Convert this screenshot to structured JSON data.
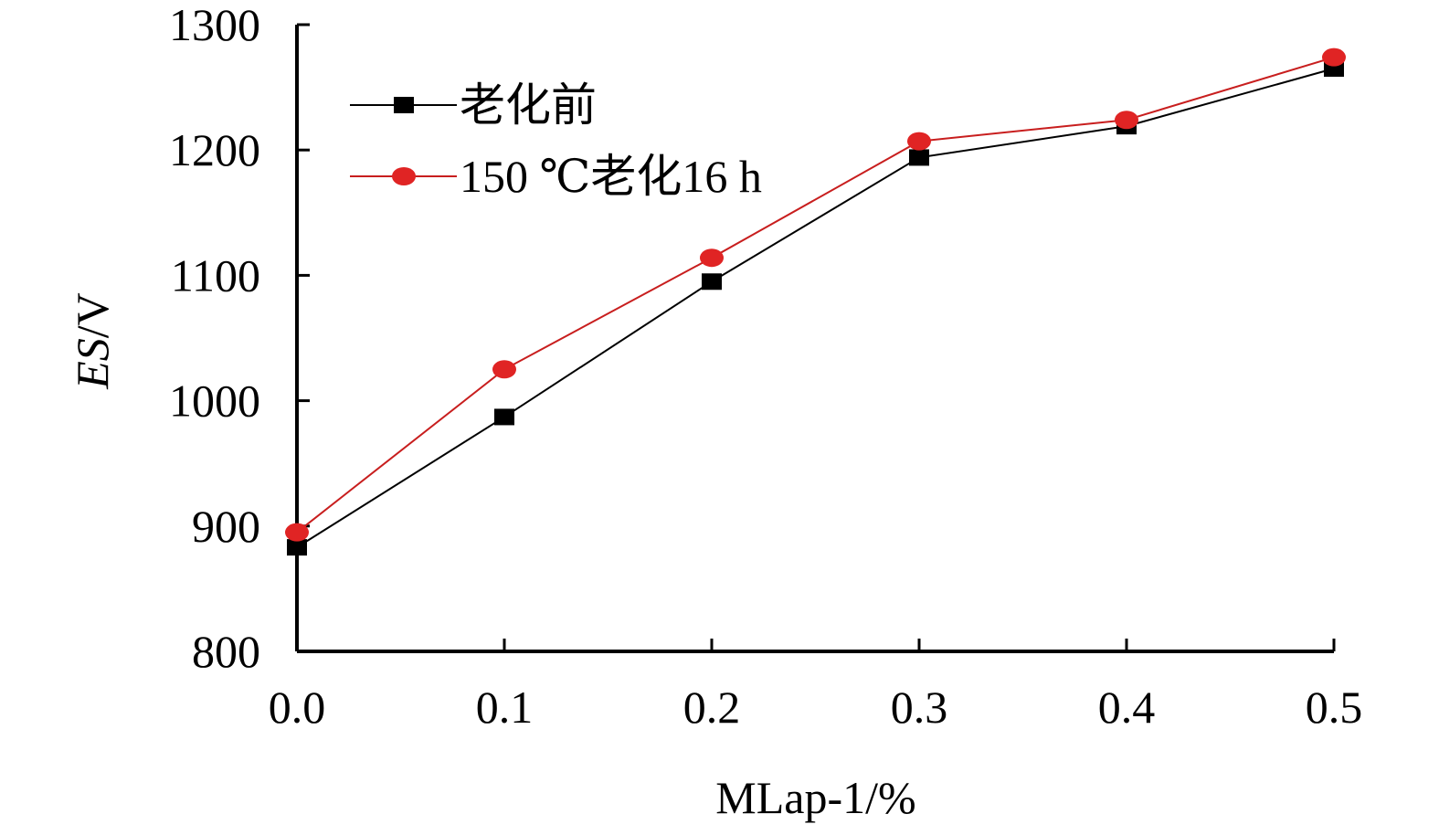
{
  "chart_data": {
    "type": "line",
    "x": [
      0.0,
      0.1,
      0.2,
      0.3,
      0.4,
      0.5
    ],
    "x_tick_labels": [
      "0.0",
      "0.1",
      "0.2",
      "0.3",
      "0.4",
      "0.5"
    ],
    "xlim": [
      0.0,
      0.5
    ],
    "ylim": [
      800,
      1300
    ],
    "y_ticks": [
      800,
      900,
      1000,
      1100,
      1200,
      1300
    ],
    "xlabel": "MLap-1/%",
    "ylabel_italic": "ES",
    "ylabel_unit": "/V",
    "grid": false,
    "legend_position": "top-left",
    "series": [
      {
        "name": "老化前",
        "marker": "square",
        "color": "#000000",
        "values": [
          883,
          987,
          1095,
          1194,
          1219,
          1265
        ]
      },
      {
        "name": "150 ℃老化16 h",
        "marker": "circle",
        "color": "#e02424",
        "values": [
          895,
          1025,
          1114,
          1207,
          1224,
          1274
        ]
      }
    ]
  }
}
